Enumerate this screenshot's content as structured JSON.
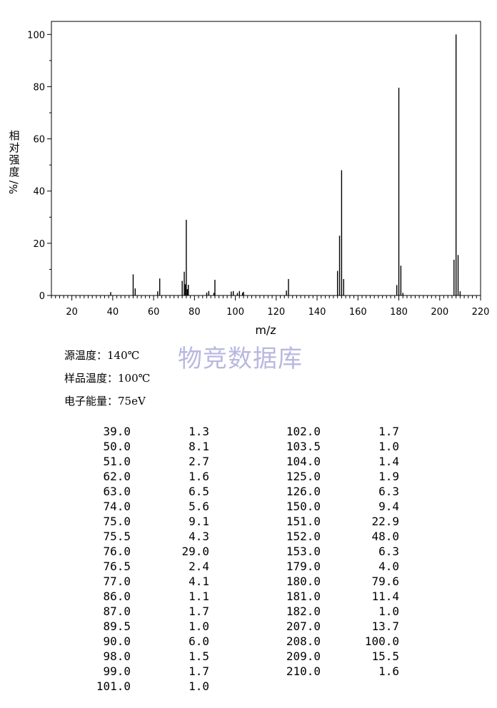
{
  "chart_data": {
    "type": "bar",
    "xlabel": "m/z",
    "ylabel_chars": [
      "相",
      "对",
      "强",
      "度"
    ],
    "ylabel_unit": "%/",
    "xlim": [
      10,
      220
    ],
    "ylim": [
      0,
      105
    ],
    "xticks": [
      20,
      40,
      60,
      80,
      100,
      120,
      140,
      160,
      180,
      200,
      220
    ],
    "yticks": [
      0,
      20,
      40,
      60,
      80,
      100
    ],
    "x": [
      39.0,
      50.0,
      51.0,
      62.0,
      63.0,
      74.0,
      75.0,
      75.5,
      76.0,
      76.5,
      77.0,
      86.0,
      87.0,
      89.5,
      90.0,
      98.0,
      99.0,
      101.0,
      102.0,
      103.5,
      104.0,
      125.0,
      126.0,
      150.0,
      151.0,
      152.0,
      153.0,
      179.0,
      180.0,
      181.0,
      182.0,
      207.0,
      208.0,
      209.0,
      210.0
    ],
    "values": [
      1.3,
      8.1,
      2.7,
      1.6,
      6.5,
      5.6,
      9.1,
      4.3,
      29.0,
      2.4,
      4.1,
      1.1,
      1.7,
      1.0,
      6.0,
      1.5,
      1.7,
      1.0,
      1.7,
      1.0,
      1.4,
      1.9,
      6.3,
      9.4,
      22.9,
      48.0,
      6.3,
      4.0,
      79.6,
      11.4,
      1.0,
      13.7,
      100.0,
      15.5,
      1.6
    ],
    "grid": false,
    "color": "#000000"
  },
  "watermark": "物竞数据库",
  "conditions": {
    "source_temp": "源温度：140℃",
    "sample_temp": "样品温度：100℃",
    "electron_energy": "电子能量：75eV"
  },
  "peaks_left": [
    [
      "39.0",
      "1.3"
    ],
    [
      "50.0",
      "8.1"
    ],
    [
      "51.0",
      "2.7"
    ],
    [
      "62.0",
      "1.6"
    ],
    [
      "63.0",
      "6.5"
    ],
    [
      "74.0",
      "5.6"
    ],
    [
      "75.0",
      "9.1"
    ],
    [
      "75.5",
      "4.3"
    ],
    [
      "76.0",
      "29.0"
    ],
    [
      "76.5",
      "2.4"
    ],
    [
      "77.0",
      "4.1"
    ],
    [
      "86.0",
      "1.1"
    ],
    [
      "87.0",
      "1.7"
    ],
    [
      "89.5",
      "1.0"
    ],
    [
      "90.0",
      "6.0"
    ],
    [
      "98.0",
      "1.5"
    ],
    [
      "99.0",
      "1.7"
    ],
    [
      "101.0",
      "1.0"
    ]
  ],
  "peaks_right": [
    [
      "102.0",
      "1.7"
    ],
    [
      "103.5",
      "1.0"
    ],
    [
      "104.0",
      "1.4"
    ],
    [
      "125.0",
      "1.9"
    ],
    [
      "126.0",
      "6.3"
    ],
    [
      "150.0",
      "9.4"
    ],
    [
      "151.0",
      "22.9"
    ],
    [
      "152.0",
      "48.0"
    ],
    [
      "153.0",
      "6.3"
    ],
    [
      "179.0",
      "4.0"
    ],
    [
      "180.0",
      "79.6"
    ],
    [
      "181.0",
      "11.4"
    ],
    [
      "182.0",
      "1.0"
    ],
    [
      "207.0",
      "13.7"
    ],
    [
      "208.0",
      "100.0"
    ],
    [
      "209.0",
      "15.5"
    ],
    [
      "210.0",
      "1.6"
    ]
  ]
}
